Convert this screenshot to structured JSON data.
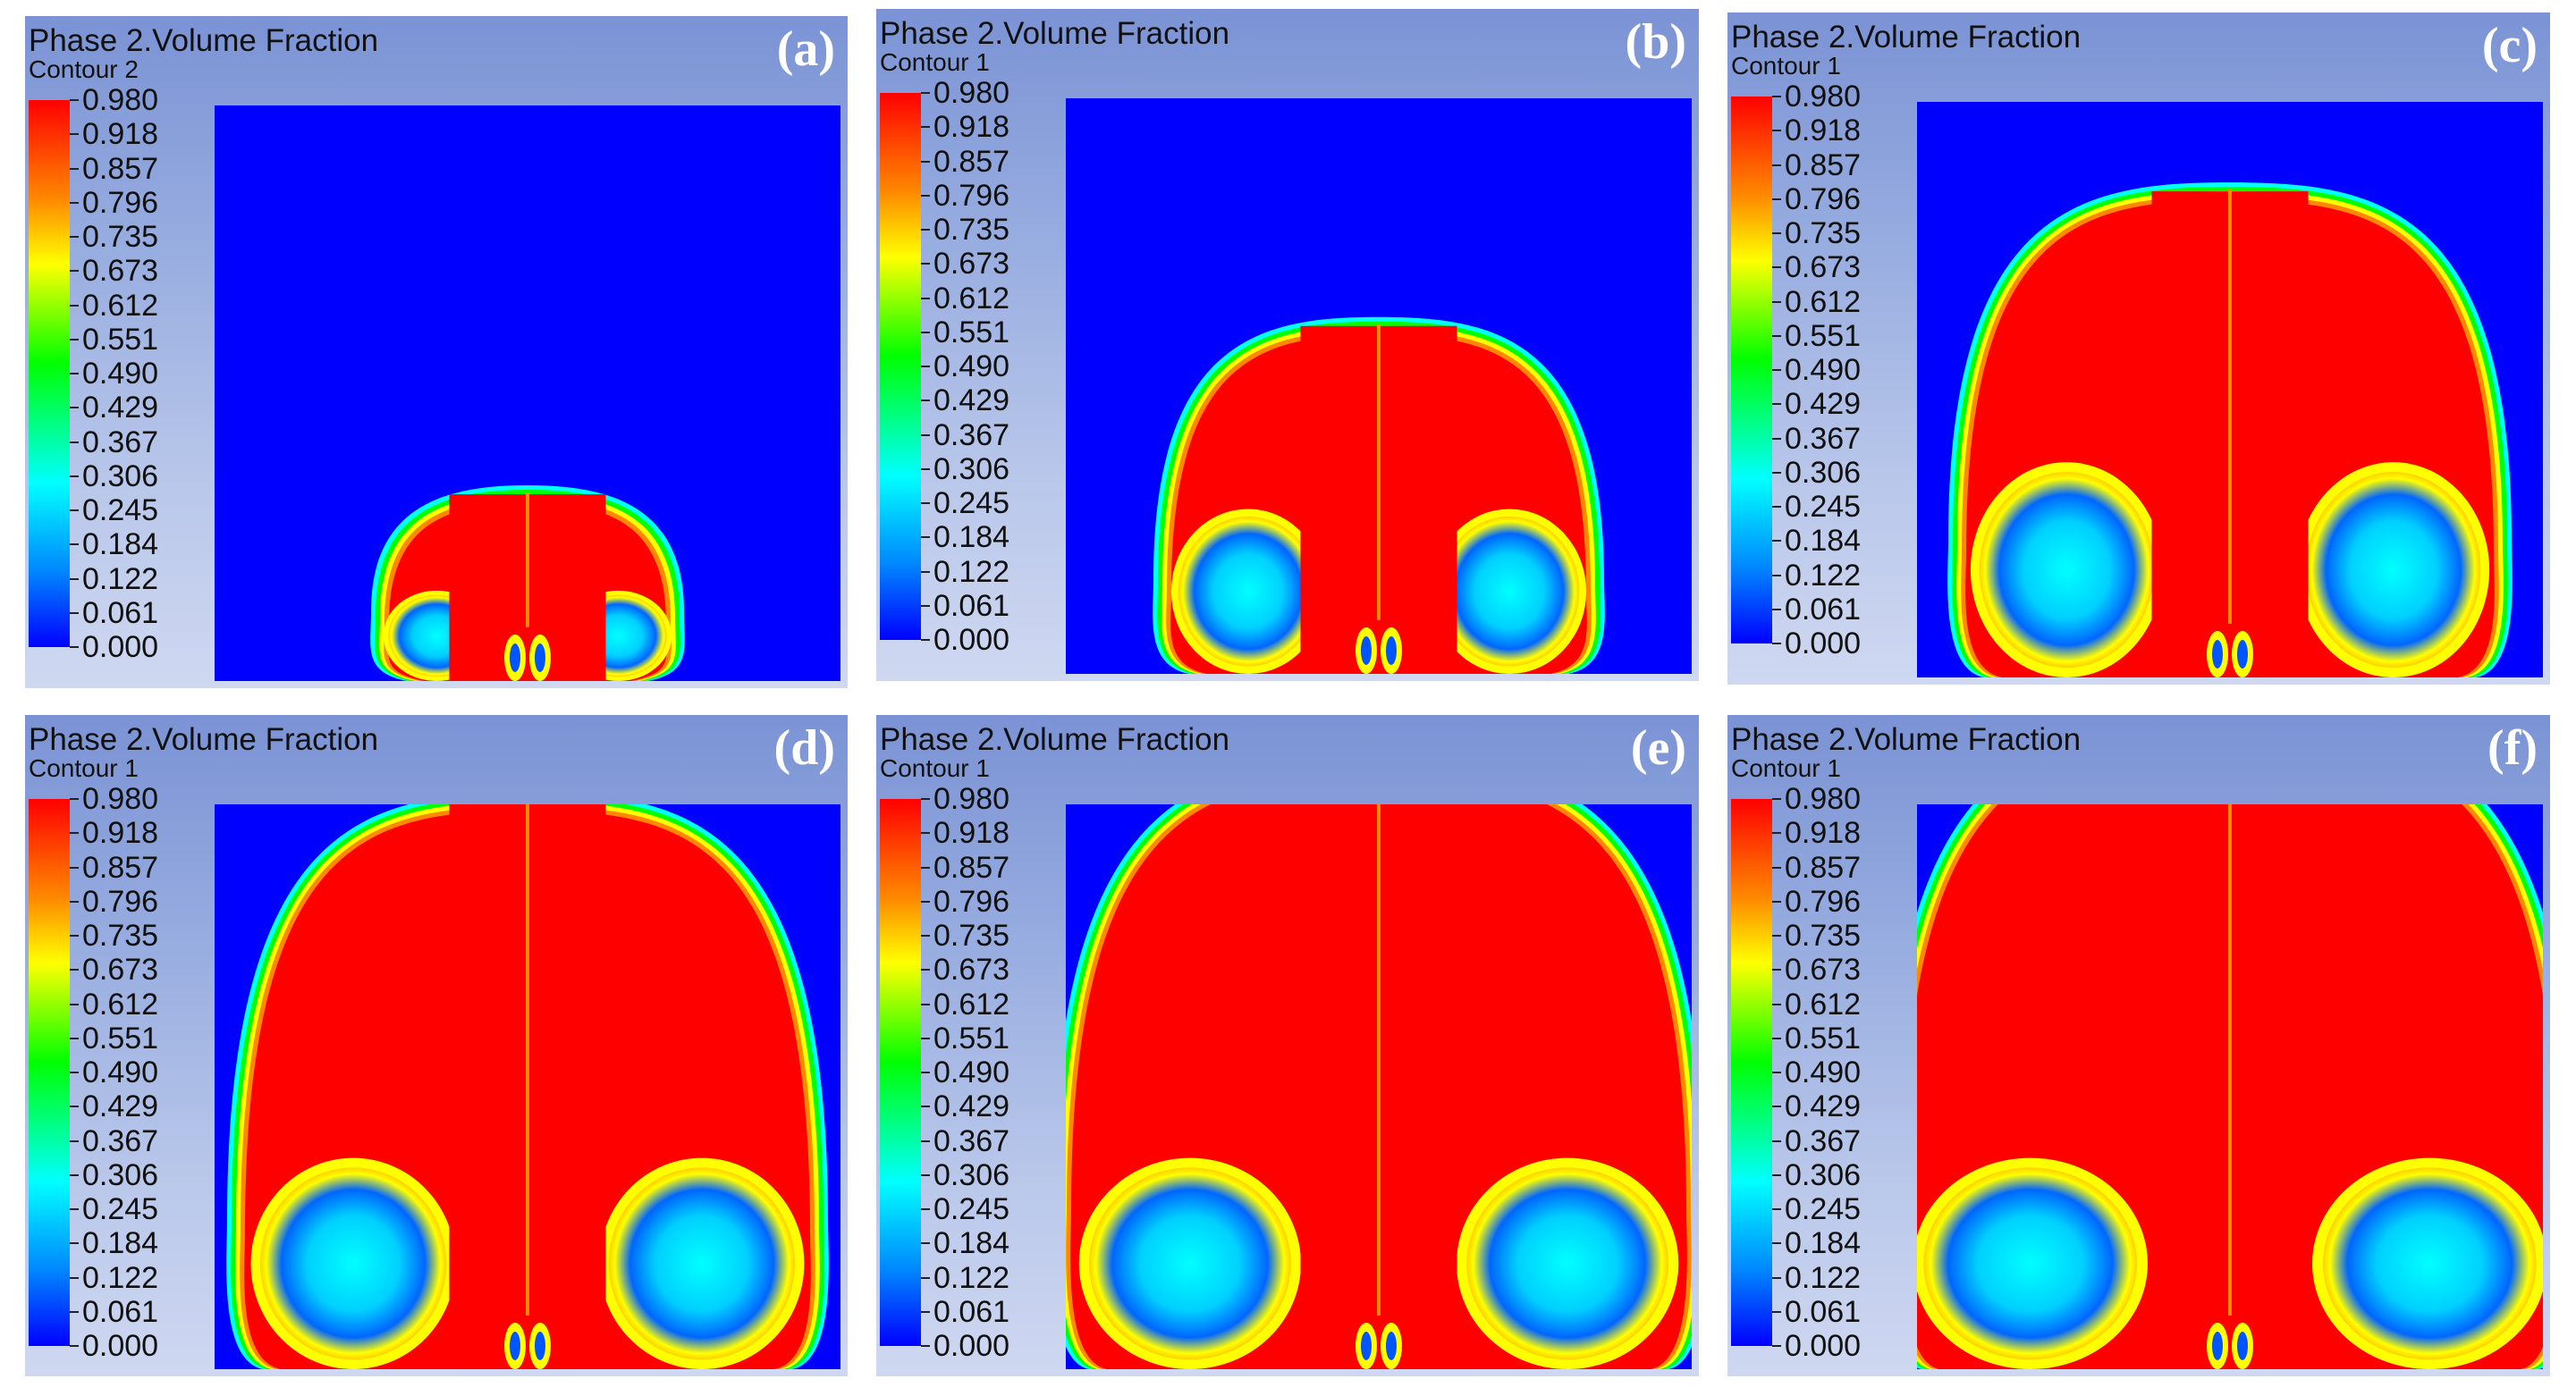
{
  "panels": [
    {
      "title": "Phase 2.Volume Fraction",
      "subtitle": "Contour 2",
      "label": "(a)",
      "stage": 1
    },
    {
      "title": "Phase 2.Volume Fraction",
      "subtitle": "Contour 1",
      "label": "(b)",
      "stage": 2
    },
    {
      "title": "Phase 2.Volume Fraction",
      "subtitle": "Contour 1",
      "label": "(c)",
      "stage": 3
    },
    {
      "title": "Phase 2.Volume Fraction",
      "subtitle": "Contour 1",
      "label": "(d)",
      "stage": 4
    },
    {
      "title": "Phase 2.Volume Fraction",
      "subtitle": "Contour 1",
      "label": "(e)",
      "stage": 5
    },
    {
      "title": "Phase 2.Volume Fraction",
      "subtitle": "Contour 1",
      "label": "(f)",
      "stage": 6
    }
  ],
  "legend": {
    "values": [
      "0.980",
      "0.918",
      "0.857",
      "0.796",
      "0.735",
      "0.673",
      "0.612",
      "0.551",
      "0.490",
      "0.429",
      "0.367",
      "0.306",
      "0.245",
      "0.184",
      "0.122",
      "0.061",
      "0.000"
    ],
    "colors": {
      "high": "#ff0000",
      "orange": "#ff8800",
      "yellow": "#ffff00",
      "green": "#00ff00",
      "cyan": "#00ffff",
      "low": "#0000ff"
    }
  }
}
